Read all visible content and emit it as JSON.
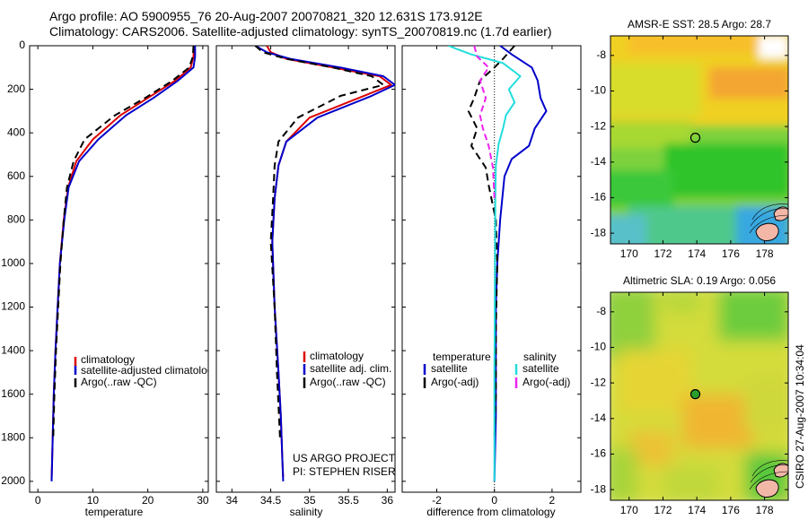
{
  "header": {
    "line1": "Argo profile: AO 5900955_76 20-Aug-2007 20070821_320 12.631S 173.912E",
    "line2": "Climatology: CARS2006. Satellite-adjusted climatology: synTS_20070819.nc (1.7d earlier)"
  },
  "credit": "CSIRO 27-Aug-2007 10:34:04",
  "colors": {
    "clim": "#dd0000",
    "sat": "#0000cc",
    "argo": "#000000",
    "sal_sat": "#22dddd",
    "sal_argo": "#ee22ee"
  },
  "chart_data": [
    {
      "type": "line",
      "xlabel": "temperature",
      "ylabel": "",
      "xlim": [
        -1.5,
        31
      ],
      "ylim": [
        2050,
        0
      ],
      "xticks": [
        0,
        10,
        20,
        30
      ],
      "yticks": [
        0,
        200,
        400,
        600,
        800,
        1000,
        1200,
        1400,
        1600,
        1800,
        2000
      ],
      "legend": [
        "climatology",
        "satellite-adjusted climatology",
        "Argo(..raw -QC)"
      ],
      "series": [
        {
          "name": "climatology",
          "style": "clim",
          "x": [
            28.4,
            28.3,
            27.8,
            25,
            20,
            15,
            10,
            7,
            5.5,
            4.7,
            4.0,
            3.6,
            3.2,
            2.9,
            2.7,
            2.5
          ],
          "y": [
            0,
            50,
            100,
            160,
            240,
            320,
            430,
            530,
            650,
            800,
            1000,
            1200,
            1400,
            1600,
            1800,
            1990
          ]
        },
        {
          "name": "satellite-adjusted climatology",
          "style": "sat",
          "x": [
            28.6,
            28.6,
            28.3,
            25.5,
            21,
            16,
            11,
            7.5,
            5.6,
            4.8,
            4.0,
            3.6,
            3.2,
            2.9,
            2.7,
            2.5
          ],
          "y": [
            0,
            50,
            100,
            160,
            240,
            320,
            430,
            530,
            650,
            800,
            1000,
            1200,
            1400,
            1600,
            1800,
            2000
          ]
        },
        {
          "name": "Argo(..raw -QC)",
          "style": "argo",
          "x": [
            28.3,
            28.2,
            27.5,
            24.5,
            19.5,
            14,
            8.5,
            6.5,
            5.3,
            4.7,
            4.1,
            3.7,
            3.3,
            3.0,
            2.8
          ],
          "y": [
            0,
            50,
            100,
            160,
            240,
            320,
            430,
            530,
            650,
            800,
            1000,
            1200,
            1400,
            1600,
            1800
          ]
        }
      ]
    },
    {
      "type": "line",
      "xlabel": "salinity",
      "ylabel": "",
      "xlim": [
        33.8,
        36.1
      ],
      "ylim": [
        2050,
        0
      ],
      "xticks": [
        34,
        34.5,
        35,
        35.5,
        36
      ],
      "yticks": [
        0,
        200,
        400,
        600,
        800,
        1000,
        1200,
        1400,
        1600,
        1800,
        2000
      ],
      "legend": [
        "climatology",
        "satellite adj. clim.",
        "Argo(..raw -QC)"
      ],
      "annotation": [
        "US ARGO PROJECT",
        "PI: STEPHEN RISER"
      ],
      "series": [
        {
          "name": "climatology",
          "style": "clim",
          "x": [
            34.45,
            34.5,
            34.7,
            35.3,
            35.9,
            36.05,
            35.7,
            35.0,
            34.7,
            34.6,
            34.55,
            34.52,
            34.55,
            34.6,
            34.63,
            34.65,
            34.66
          ],
          "y": [
            0,
            30,
            60,
            100,
            140,
            180,
            230,
            330,
            440,
            550,
            700,
            900,
            1200,
            1500,
            1700,
            1900,
            1980
          ]
        },
        {
          "name": "satellite adj. clim.",
          "style": "sat",
          "x": [
            34.3,
            34.45,
            34.75,
            35.4,
            35.95,
            36.1,
            35.8,
            35.1,
            34.7,
            34.6,
            34.55,
            34.52,
            34.55,
            34.6,
            34.63,
            34.65,
            34.66
          ],
          "y": [
            0,
            30,
            60,
            100,
            140,
            180,
            230,
            330,
            440,
            550,
            700,
            900,
            1200,
            1500,
            1700,
            1900,
            2000
          ]
        },
        {
          "name": "Argo(..raw -QC)",
          "style": "argo",
          "x": [
            34.3,
            34.4,
            34.7,
            35.3,
            35.8,
            35.95,
            35.4,
            34.85,
            34.6,
            34.55,
            34.53,
            34.5,
            34.55,
            34.58,
            34.62
          ],
          "y": [
            0,
            30,
            60,
            100,
            140,
            180,
            230,
            330,
            440,
            550,
            700,
            900,
            1200,
            1500,
            1800
          ]
        }
      ]
    },
    {
      "type": "line",
      "xlabel": "difference from climatology",
      "ylabel": "",
      "xlim": [
        -3.2,
        3.0
      ],
      "ylim": [
        2050,
        0
      ],
      "xticks": [
        -2,
        0,
        2
      ],
      "yticks": [
        0,
        200,
        400,
        600,
        800,
        1000,
        1200,
        1400,
        1600,
        1800,
        2000
      ],
      "legend_left_title": "temperature",
      "legend_right_title": "salinity",
      "legend": [
        "satellite",
        "Argo(-adj)",
        "satellite",
        "Argo(-adj)"
      ],
      "series": [
        {
          "name": "temperature satellite",
          "style": "sat",
          "x": [
            0.2,
            0.6,
            1.3,
            1.5,
            1.6,
            1.8,
            1.4,
            1.2,
            0.6,
            0.35,
            0.2,
            0.1,
            0.05,
            0.05,
            0.05,
            0.0
          ],
          "y": [
            0,
            40,
            100,
            160,
            240,
            300,
            380,
            460,
            520,
            600,
            800,
            1000,
            1200,
            1400,
            1700,
            2000
          ]
        },
        {
          "name": "temperature Argo(-adj)",
          "style": "argo",
          "x": [
            0.7,
            0.3,
            0.0,
            -0.5,
            -0.7,
            -0.9,
            -0.6,
            -0.8,
            -0.3,
            -0.2,
            0.05,
            0.1,
            0.05,
            0.05,
            0.0
          ],
          "y": [
            0,
            60,
            100,
            160,
            240,
            300,
            380,
            460,
            560,
            640,
            800,
            1000,
            1300,
            1600,
            1800
          ]
        },
        {
          "name": "salinity satellite",
          "style": "sal_sat",
          "x": [
            -1.6,
            -0.8,
            0.3,
            0.9,
            0.5,
            0.7,
            0.4,
            0.3,
            0.15,
            0.05,
            0.03,
            0.02,
            0.0,
            0.0
          ],
          "y": [
            0,
            40,
            80,
            140,
            200,
            260,
            320,
            380,
            450,
            550,
            700,
            1000,
            1500,
            2000
          ]
        },
        {
          "name": "salinity Argo(-adj)",
          "style": "sal_argo",
          "x": [
            -0.7,
            -0.6,
            -0.2,
            -0.5,
            -0.3,
            -0.5,
            -0.4,
            -0.2,
            -0.05,
            0.0
          ],
          "y": [
            0,
            50,
            100,
            160,
            240,
            320,
            380,
            460,
            560,
            700
          ]
        }
      ]
    },
    {
      "type": "heatmap",
      "title": "AMSR-E SST: 28.5 Argo: 28.7",
      "xlim": [
        168.9,
        179.4
      ],
      "ylim": [
        -18.6,
        -6.9
      ],
      "xticks": [
        170,
        172,
        174,
        176,
        178
      ],
      "yticks": [
        -8,
        -10,
        -12,
        -14,
        -16,
        -18
      ],
      "marker": {
        "lon": 173.912,
        "lat": -12.631
      }
    },
    {
      "type": "heatmap",
      "title": "Altimetric SLA: 0.19 Argo: 0.056",
      "xlim": [
        168.9,
        179.4
      ],
      "ylim": [
        -18.6,
        -6.9
      ],
      "xticks": [
        170,
        172,
        174,
        176,
        178
      ],
      "yticks": [
        -8,
        -10,
        -12,
        -14,
        -16,
        -18
      ],
      "marker": {
        "lon": 173.912,
        "lat": -12.631
      }
    }
  ]
}
